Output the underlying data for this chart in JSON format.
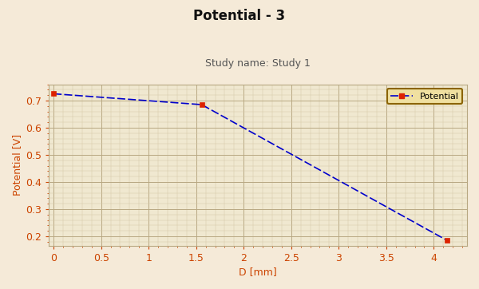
{
  "title": "Potential - 3",
  "subtitle": "Study name: Study 1",
  "xlabel": "D [mm]",
  "ylabel": "Potential [V]",
  "background_color": "#f5ead8",
  "plot_bg_color": "#f0e8d0",
  "grid_color_major": "#b8a882",
  "grid_color_minor": "#d5c9a8",
  "line_color": "#0000cc",
  "marker_color": "#dd2200",
  "legend_label": "Potential",
  "legend_edge_color": "#8b6400",
  "legend_bg_color": "#f0e0a0",
  "title_color": "#111111",
  "subtitle_color": "#555555",
  "axis_label_color": "#cc4400",
  "tick_label_color": "#cc4400",
  "title_fontsize": 12,
  "subtitle_fontsize": 9,
  "axis_label_fontsize": 9,
  "tick_label_fontsize": 9,
  "xlim": [
    -0.05,
    4.35
  ],
  "ylim": [
    0.165,
    0.76
  ],
  "xticks": [
    0,
    0.5,
    1.0,
    1.5,
    2.0,
    2.5,
    3.0,
    3.5,
    4.0
  ],
  "yticks": [
    0.2,
    0.3,
    0.4,
    0.5,
    0.6,
    0.7
  ],
  "key_points_x": [
    0.0,
    1.558,
    4.138
  ],
  "key_points_y": [
    0.725,
    0.685,
    0.185
  ],
  "line_width": 1.2,
  "marker_size": 4
}
